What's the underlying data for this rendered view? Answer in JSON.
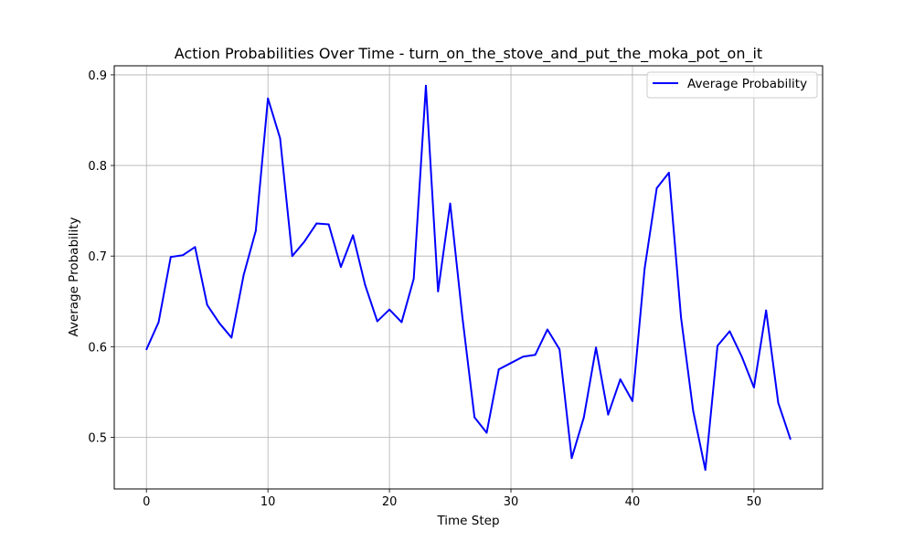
{
  "chart_data": {
    "type": "line",
    "title": "Action Probabilities Over Time - turn_on_the_stove_and_put_the_moka_pot_on_it",
    "xlabel": "Time Step",
    "ylabel": "Average Probability",
    "xlim": [
      -2.65,
      55.65
    ],
    "ylim": [
      0.443,
      0.91
    ],
    "grid": true,
    "legend_position": "top-right",
    "x_ticks": [
      0,
      10,
      20,
      30,
      40,
      50
    ],
    "x_tick_labels": [
      "0",
      "10",
      "20",
      "30",
      "40",
      "50"
    ],
    "y_ticks": [
      0.5,
      0.6,
      0.7,
      0.8,
      0.9
    ],
    "y_tick_labels": [
      "0.5",
      "0.6",
      "0.7",
      "0.8",
      "0.9"
    ],
    "series": [
      {
        "name": "Average Probability",
        "color": "#0000ff",
        "x": [
          0,
          1,
          2,
          3,
          4,
          5,
          6,
          7,
          8,
          9,
          10,
          11,
          12,
          13,
          14,
          15,
          16,
          17,
          18,
          19,
          20,
          21,
          22,
          23,
          24,
          25,
          26,
          27,
          28,
          29,
          30,
          31,
          32,
          33,
          34,
          35,
          36,
          37,
          38,
          39,
          40,
          41,
          42,
          43,
          44,
          45,
          46,
          47,
          48,
          49,
          50,
          51,
          52,
          53
        ],
        "values": [
          0.597,
          0.627,
          0.699,
          0.701,
          0.71,
          0.646,
          0.626,
          0.61,
          0.679,
          0.728,
          0.874,
          0.83,
          0.7,
          0.716,
          0.736,
          0.735,
          0.688,
          0.723,
          0.668,
          0.628,
          0.641,
          0.627,
          0.675,
          0.888,
          0.661,
          0.758,
          0.633,
          0.522,
          0.505,
          0.575,
          0.582,
          0.589,
          0.591,
          0.619,
          0.597,
          0.477,
          0.522,
          0.599,
          0.525,
          0.564,
          0.54,
          0.686,
          0.775,
          0.792,
          0.632,
          0.529,
          0.464,
          0.601,
          0.617,
          0.589,
          0.555,
          0.64,
          0.538,
          0.498
        ]
      }
    ]
  }
}
